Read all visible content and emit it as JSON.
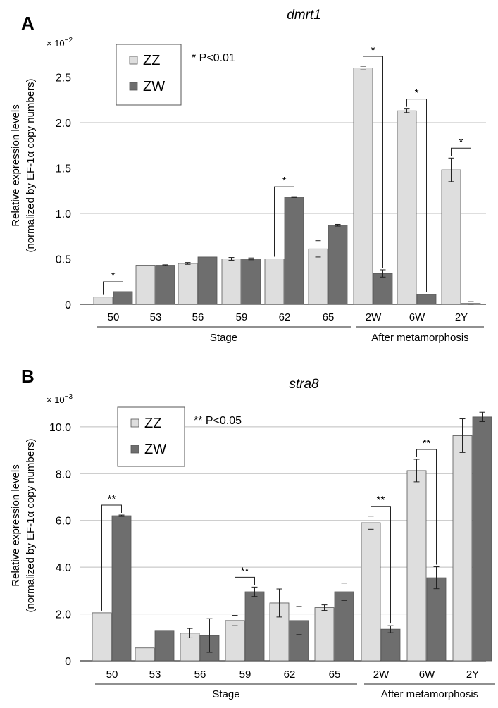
{
  "figure": {
    "y_axis_label_line1": "Relative expression levels",
    "y_axis_label_line2": "(normalized by EF-1α copy numbers)",
    "x_group_stage": "Stage",
    "x_group_after": "After metamorphosis"
  },
  "colors": {
    "zz": "#dedede",
    "zw": "#6e6e6e",
    "grid": "#bdbdbd",
    "axis": "#333333"
  },
  "chart_data": [
    {
      "panel_letter": "A",
      "type": "bar",
      "title": "dmrt1",
      "scale_label": "× 10",
      "scale_exponent": "−2",
      "categories": [
        "50",
        "53",
        "56",
        "59",
        "62",
        "65",
        "2W",
        "6W",
        "2Y"
      ],
      "series": [
        {
          "name": "ZZ",
          "values": [
            0.08,
            0.43,
            0.45,
            0.5,
            0.5,
            0.61,
            2.6,
            2.13,
            1.48
          ],
          "errors": [
            0,
            0,
            0.01,
            0.015,
            0,
            0.09,
            0.02,
            0.02,
            0.13
          ]
        },
        {
          "name": "ZW",
          "values": [
            0.14,
            0.43,
            0.52,
            0.5,
            1.18,
            0.87,
            0.34,
            0.11,
            0.01
          ],
          "errors": [
            0,
            0.005,
            0,
            0.01,
            0.005,
            0.01,
            0.04,
            0,
            0.02
          ]
        }
      ],
      "ylim": [
        0,
        3.0
      ],
      "yticks": [
        0,
        0.5,
        1.0,
        1.5,
        2.0,
        2.5
      ],
      "ytick_labels": [
        "0",
        "0.5",
        "1.0",
        "1.5",
        "2.0",
        "2.5"
      ],
      "grid": true,
      "legend": "top-left",
      "significance_note": "* P<0.01",
      "significance": [
        {
          "category": "50",
          "mark": "*"
        },
        {
          "category": "62",
          "mark": "*"
        },
        {
          "category": "2W",
          "mark": "*"
        },
        {
          "category": "6W",
          "mark": "*"
        },
        {
          "category": "2Y",
          "mark": "*"
        }
      ]
    },
    {
      "panel_letter": "B",
      "type": "bar",
      "title": "stra8",
      "scale_label": "× 10",
      "scale_exponent": "−3",
      "categories": [
        "50",
        "53",
        "56",
        "59",
        "62",
        "65",
        "2W",
        "6W",
        "2Y"
      ],
      "series": [
        {
          "name": "ZZ",
          "values": [
            2.05,
            0.55,
            1.18,
            1.72,
            2.47,
            2.27,
            5.9,
            8.13,
            9.62
          ],
          "errors": [
            0,
            0,
            0.2,
            0.22,
            0.6,
            0.12,
            0.28,
            0.48,
            0.72
          ]
        },
        {
          "name": "ZW",
          "values": [
            6.2,
            1.3,
            1.08,
            2.95,
            1.72,
            2.95,
            1.35,
            3.55,
            10.42
          ],
          "errors": [
            0.03,
            0,
            0.72,
            0.2,
            0.6,
            0.37,
            0.15,
            0.47,
            0.2
          ]
        }
      ],
      "ylim": [
        0,
        11.5
      ],
      "yticks": [
        0,
        2.0,
        4.0,
        6.0,
        8.0,
        10.0
      ],
      "ytick_labels": [
        "0",
        "2.0",
        "4.0",
        "6.0",
        "8.0",
        "10.0"
      ],
      "grid": true,
      "legend": "top-left",
      "significance_note": "** P<0.05",
      "significance": [
        {
          "category": "50",
          "mark": "**"
        },
        {
          "category": "59",
          "mark": "**"
        },
        {
          "category": "2W",
          "mark": "**"
        },
        {
          "category": "6W",
          "mark": "**"
        }
      ]
    }
  ]
}
